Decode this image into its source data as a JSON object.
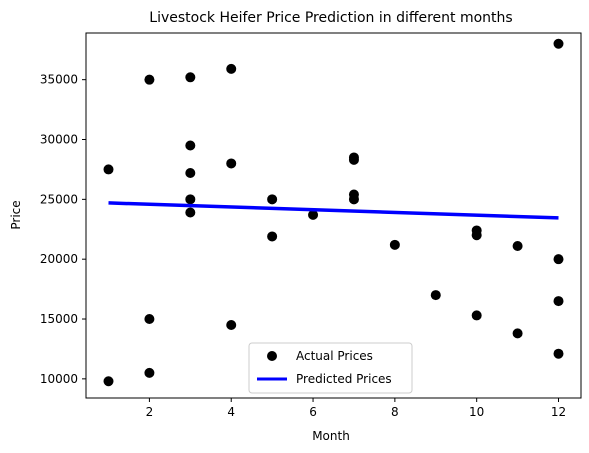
{
  "chart_data": {
    "type": "scatter",
    "title": "Livestock Heifer Price Prediction in different months",
    "xlabel": "Month",
    "ylabel": "Price",
    "xlim": [
      0.45,
      12.55
    ],
    "ylim": [
      8400,
      38900
    ],
    "xticks": [
      2,
      4,
      6,
      8,
      10,
      12
    ],
    "yticks": [
      10000,
      15000,
      20000,
      25000,
      30000,
      35000
    ],
    "grid": false,
    "legend_position": "bottom-center",
    "series": [
      {
        "name": "Actual Prices",
        "kind": "scatter",
        "color": "#000000",
        "points": [
          [
            1,
            27500
          ],
          [
            1,
            9800
          ],
          [
            2,
            35000
          ],
          [
            2,
            15000
          ],
          [
            2,
            10500
          ],
          [
            3,
            35200
          ],
          [
            3,
            29500
          ],
          [
            3,
            27200
          ],
          [
            3,
            25000
          ],
          [
            3,
            23900
          ],
          [
            4,
            35900
          ],
          [
            4,
            28000
          ],
          [
            4,
            14500
          ],
          [
            5,
            25000
          ],
          [
            5,
            21900
          ],
          [
            6,
            23700
          ],
          [
            7,
            28500
          ],
          [
            7,
            28300
          ],
          [
            7,
            25400
          ],
          [
            7,
            25000
          ],
          [
            8,
            21200
          ],
          [
            9,
            17000
          ],
          [
            10,
            22400
          ],
          [
            10,
            22000
          ],
          [
            10,
            15300
          ],
          [
            11,
            21100
          ],
          [
            11,
            13800
          ],
          [
            12,
            38000
          ],
          [
            12,
            20000
          ],
          [
            12,
            16500
          ],
          [
            12,
            12100
          ]
        ]
      },
      {
        "name": "Predicted Prices",
        "kind": "line",
        "color": "#0000ff",
        "points": [
          [
            1,
            24700
          ],
          [
            12,
            23450
          ]
        ]
      }
    ]
  }
}
